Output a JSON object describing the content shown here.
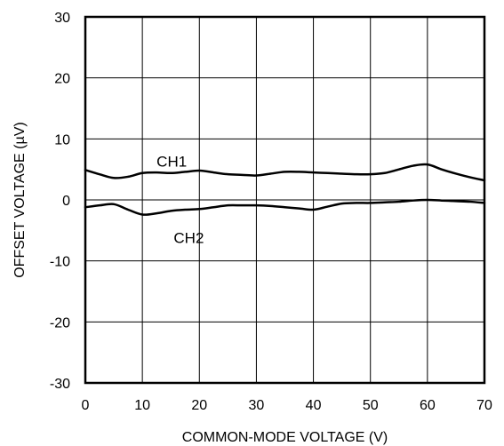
{
  "chart_data": {
    "type": "line",
    "title": "",
    "xlabel": "COMMON-MODE VOLTAGE (V)",
    "ylabel": "OFFSET VOLTAGE (µV)",
    "xlim": [
      0,
      70
    ],
    "ylim": [
      -30,
      30
    ],
    "xticks": [
      0,
      10,
      20,
      30,
      40,
      50,
      60,
      70
    ],
    "yticks": [
      30,
      20,
      10,
      0,
      -10,
      -20,
      -30
    ],
    "grid": true,
    "line_color": "#000000",
    "series": [
      {
        "name": "CH1",
        "label_at": [
          12.5,
          6.3
        ],
        "x": [
          0,
          2.5,
          5,
          7.5,
          10,
          12.5,
          15,
          17.5,
          20,
          22.5,
          25,
          27.5,
          30,
          32.5,
          35,
          37.5,
          40,
          42.5,
          45,
          47.5,
          50,
          52.5,
          55,
          57.5,
          60,
          62.5,
          65,
          67.5,
          70
        ],
        "y": [
          4.9,
          4.2,
          3.6,
          3.8,
          4.4,
          4.5,
          4.4,
          4.6,
          4.8,
          4.5,
          4.2,
          4.1,
          4.0,
          4.3,
          4.6,
          4.6,
          4.5,
          4.4,
          4.3,
          4.2,
          4.2,
          4.4,
          5.0,
          5.6,
          5.8,
          5.0,
          4.3,
          3.7,
          3.2
        ]
      },
      {
        "name": "CH2",
        "label_at": [
          15.5,
          -6.2
        ],
        "x": [
          0,
          2.5,
          5,
          7.5,
          10,
          12.5,
          15,
          17.5,
          20,
          22.5,
          25,
          27.5,
          30,
          32.5,
          35,
          37.5,
          40,
          42.5,
          45,
          47.5,
          50,
          52.5,
          55,
          57.5,
          60,
          62.5,
          65,
          67.5,
          70
        ],
        "y": [
          -1.2,
          -0.9,
          -0.7,
          -1.6,
          -2.4,
          -2.2,
          -1.8,
          -1.6,
          -1.5,
          -1.2,
          -0.9,
          -0.9,
          -0.9,
          -1.0,
          -1.2,
          -1.4,
          -1.6,
          -1.1,
          -0.6,
          -0.5,
          -0.5,
          -0.4,
          -0.3,
          -0.1,
          0.0,
          -0.1,
          -0.2,
          -0.3,
          -0.5
        ]
      }
    ]
  }
}
